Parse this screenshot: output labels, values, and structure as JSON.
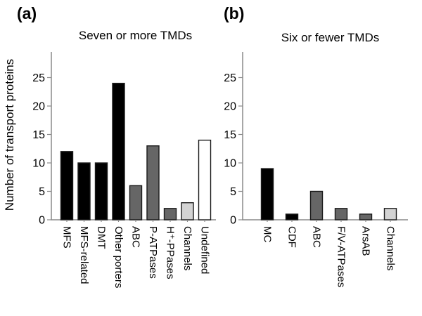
{
  "figure": {
    "background": "#ffffff"
  },
  "colors": {
    "black_bar": "#000000",
    "dark_gray_bar": "#666666",
    "light_gray_bar": "#d3d3d3",
    "white_bar": "#ffffff",
    "bar_outline": "#1a1a1a",
    "axis_line": "#8a8a8a",
    "text": "#000000"
  },
  "chart_data": [
    {
      "type": "bar",
      "panel_label": "(a)",
      "title": "Seven or more TMDs",
      "ylabel": "Number of transport proteins",
      "categories": [
        "MFS",
        "MFS-related",
        "DMT",
        "Other porters",
        "ABC",
        "P-ATPases",
        "H⁺-PPases",
        "Channels",
        "Undefined"
      ],
      "values": [
        12,
        10,
        10,
        24,
        6,
        13,
        2,
        3,
        14
      ],
      "bar_colors": [
        "black_bar",
        "black_bar",
        "black_bar",
        "black_bar",
        "dark_gray_bar",
        "dark_gray_bar",
        "dark_gray_bar",
        "light_gray_bar",
        "white_bar"
      ],
      "yticks": [
        0,
        5,
        10,
        15,
        20,
        25
      ],
      "ylim": [
        0,
        29.5
      ],
      "grid": false,
      "legend_position": "none"
    },
    {
      "type": "bar",
      "panel_label": "(b)",
      "title": "Six or fewer TMDs",
      "ylabel": "",
      "categories": [
        "MC",
        "CDF",
        "ABC",
        "F/V-ATPases",
        "ArsAB",
        "Channels"
      ],
      "values": [
        9,
        1,
        5,
        2,
        1,
        2
      ],
      "bar_colors": [
        "black_bar",
        "black_bar",
        "dark_gray_bar",
        "dark_gray_bar",
        "dark_gray_bar",
        "light_gray_bar"
      ],
      "yticks": [
        0,
        5,
        10,
        15,
        20,
        25
      ],
      "ylim": [
        0,
        29.5
      ],
      "grid": false,
      "legend_position": "none"
    }
  ]
}
